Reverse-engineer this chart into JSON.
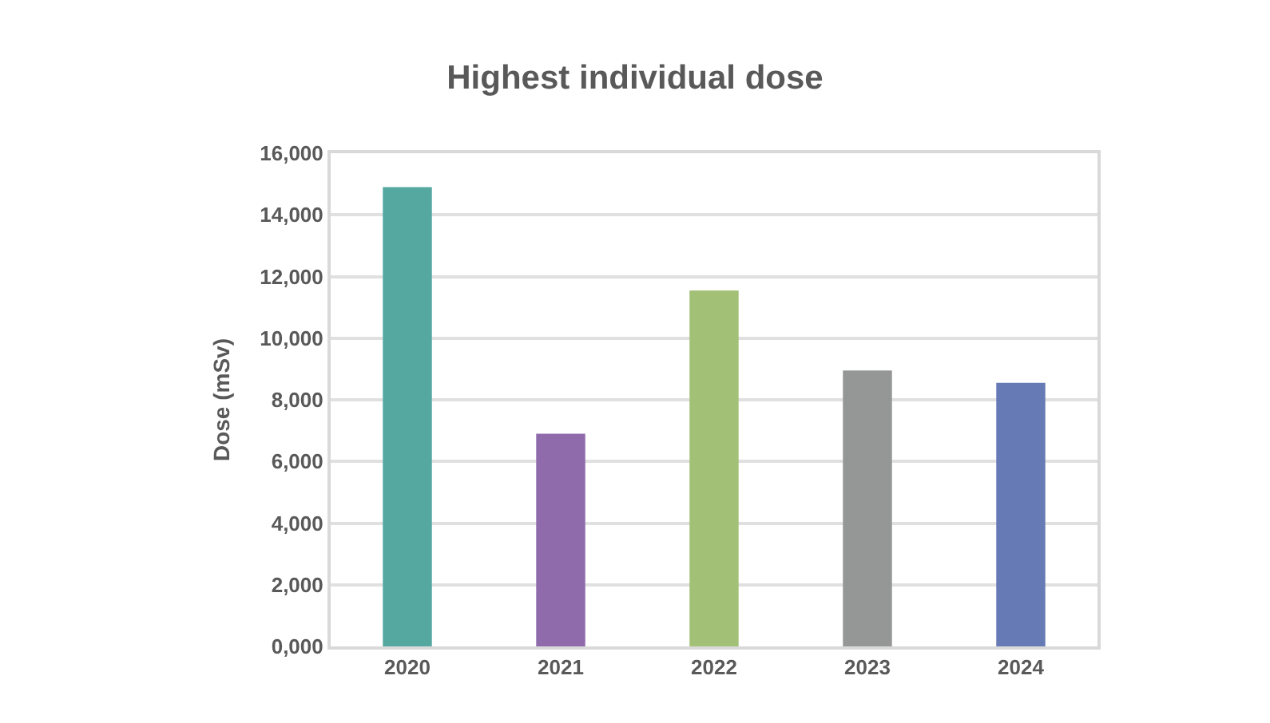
{
  "chart_data": {
    "type": "bar",
    "title": "Highest individual dose",
    "ylabel": "Dose (mSv)",
    "categories": [
      "2020",
      "2021",
      "2022",
      "2023",
      "2024"
    ],
    "values": [
      14900,
      6900,
      11550,
      8950,
      8550
    ],
    "colors": [
      "#55a8a0",
      "#906bab",
      "#a2c176",
      "#959796",
      "#667bb5"
    ],
    "ylim": [
      0,
      16000
    ],
    "yticks": [
      {
        "value": 0,
        "label": "0,000"
      },
      {
        "value": 2000,
        "label": "2,000"
      },
      {
        "value": 4000,
        "label": "4,000"
      },
      {
        "value": 6000,
        "label": "6,000"
      },
      {
        "value": 8000,
        "label": "8,000"
      },
      {
        "value": 10000,
        "label": "10,000"
      },
      {
        "value": 12000,
        "label": "12,000"
      },
      {
        "value": 14000,
        "label": "14,000"
      },
      {
        "value": 16000,
        "label": "16,000"
      }
    ],
    "grid": "y"
  }
}
